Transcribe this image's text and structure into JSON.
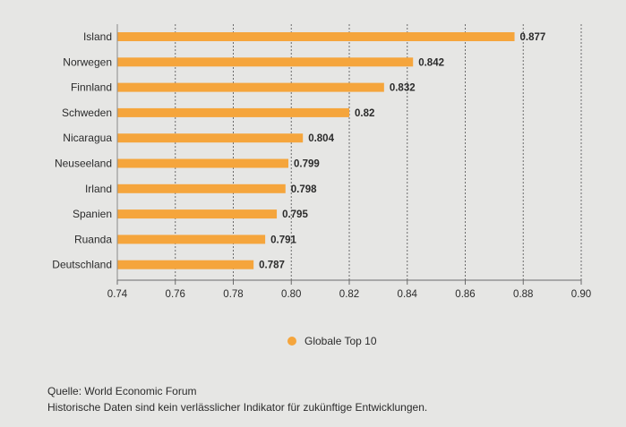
{
  "chart_data": {
    "type": "bar",
    "orientation": "horizontal",
    "categories": [
      "Island",
      "Norwegen",
      "Finnland",
      "Schweden",
      "Nicaragua",
      "Neuseeland",
      "Irland",
      "Spanien",
      "Ruanda",
      "Deutschland"
    ],
    "values": [
      0.877,
      0.842,
      0.832,
      0.82,
      0.804,
      0.799,
      0.798,
      0.795,
      0.791,
      0.787
    ],
    "value_labels": [
      "0.877",
      "0.842",
      "0.832",
      "0.82",
      "0.804",
      "0.799",
      "0.798",
      "0.795",
      "0.791",
      "0.787"
    ],
    "xlim": [
      0.74,
      0.9
    ],
    "xticks": [
      0.74,
      0.76,
      0.78,
      0.8,
      0.82,
      0.84,
      0.86,
      0.88,
      0.9
    ],
    "xtick_labels": [
      "0.74",
      "0.76",
      "0.78",
      "0.80",
      "0.82",
      "0.84",
      "0.86",
      "0.88",
      "0.90"
    ],
    "grid": "vertical-dotted",
    "legend": [
      {
        "label": "Globale Top 10",
        "color": "#f5a53c"
      }
    ],
    "bar_color": "#f5a53c"
  },
  "footer": {
    "source": "Quelle: World Economic Forum",
    "disclaimer": "Historische Daten sind kein verlässlicher Indikator für zukünftige Entwicklungen."
  }
}
